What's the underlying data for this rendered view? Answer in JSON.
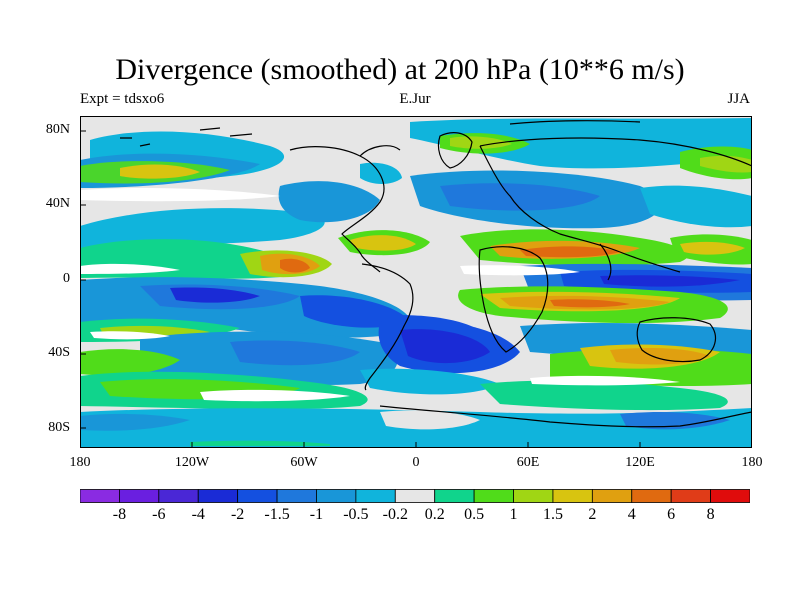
{
  "title": "Divergence (smoothed) at 200 hPa (10**6 m/s)",
  "subtitle_left": "Expt = tdsxo6",
  "subtitle_center": "E.Jur",
  "subtitle_right": "JJA",
  "lat_labels": [
    "80N",
    "40N",
    "0",
    "40S",
    "80S"
  ],
  "lon_labels": [
    "180",
    "120W",
    "60W",
    "0",
    "60E",
    "120E",
    "180"
  ],
  "colorbar": {
    "labels": [
      "-8",
      "-6",
      "-4",
      "-2",
      "-1.5",
      "-1",
      "-0.5",
      "-0.2",
      "0.2",
      "0.5",
      "1",
      "1.5",
      "2",
      "4",
      "6",
      "8"
    ],
    "colors": [
      "#8a2be2",
      "#6a1fe0",
      "#4a27d6",
      "#1a2bd6",
      "#1450e0",
      "#1f78dc",
      "#1996d8",
      "#10b4dc",
      "#e6e6e6",
      "#10d48c",
      "#50dc1a",
      "#a0d614",
      "#d8c410",
      "#e0a010",
      "#e06a10",
      "#e03c18",
      "#e00c0c"
    ]
  }
}
